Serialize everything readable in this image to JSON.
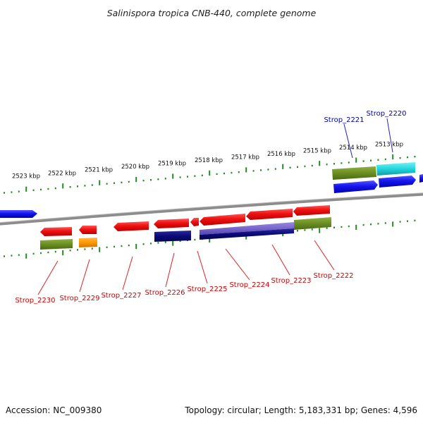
{
  "title": "Salinispora tropica CNB-440, complete genome",
  "footer": {
    "accession": "Accession: NC_009380",
    "topology": "Topology: circular; Length: 5,183,331 bp; Genes: 4,596"
  },
  "colors": {
    "backbone": "#8c8c8c",
    "ticks": "#228b22",
    "red_gene": "#ee1111",
    "blue_gene": "#1515ee",
    "navy_gene": "#0a0a7a",
    "olive_gene": "#6b8e23",
    "orange_gene": "#ff9900",
    "cyan_gene": "#22d6dd",
    "purple_gene": "#7766cc",
    "reverse_label": "#cc0000",
    "forward_label": "#0000aa"
  },
  "kbp_labels": [
    "2523 kbp",
    "2522 kbp",
    "2521 kbp",
    "2520 kbp",
    "2519 kbp",
    "2518 kbp",
    "2517 kbp",
    "2516 kbp",
    "2515 kbp",
    "2514 kbp",
    "2513 kbp"
  ],
  "forward_labels": [
    "Strop_2221",
    "Strop_2220"
  ],
  "reverse_labels": [
    "Strop_2230",
    "Strop_2229",
    "Strop_2227",
    "Strop_2226",
    "Strop_2225",
    "Strop_2224",
    "Strop_2223",
    "Strop_2222"
  ]
}
